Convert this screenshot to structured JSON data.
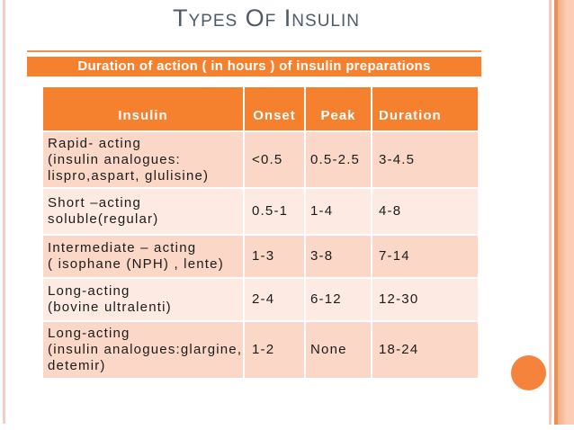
{
  "slide": {
    "title": "Types Of Insulin",
    "banner_text": "Duration of action ( in hours ) of insulin preparations"
  },
  "table": {
    "columns": [
      "Insulin",
      "Onset",
      "Peak",
      "Duration"
    ],
    "rows": [
      {
        "insulin": "Rapid- acting\n(insulin analogues:\nlispro,aspart, glulisine)",
        "onset": "<0.5",
        "peak": "0.5-2.5",
        "duration": "3-4.5"
      },
      {
        "insulin": "Short –acting\nsoluble(regular)",
        "onset": "0.5-1",
        "peak": "1-4",
        "duration": "4-8"
      },
      {
        "insulin": "Intermediate – acting\n( isophane (NPH) , lente)",
        "onset": "1-3",
        "peak": "3-8",
        "duration": "7-14"
      },
      {
        "insulin": "Long-acting\n(bovine ultralenti)",
        "onset": "2-4",
        "peak": "6-12",
        "duration": "12-30"
      },
      {
        "insulin": "Long-acting\n(insulin analogues:glargine,\ndetemir)",
        "onset": "1-2",
        "peak": "None",
        "duration": "18-24"
      }
    ]
  },
  "colors": {
    "accent_orange": "#f5802d",
    "row_band_dark": "#fad7c6",
    "row_band_light": "#fdeae2",
    "side_band_peach": "#fccdb3",
    "side_stripe_orange": "#e59157",
    "side_stripe_pink": "#f3cabb",
    "title_gray": "#4e5a67",
    "circle_orange": "#f6833c"
  }
}
